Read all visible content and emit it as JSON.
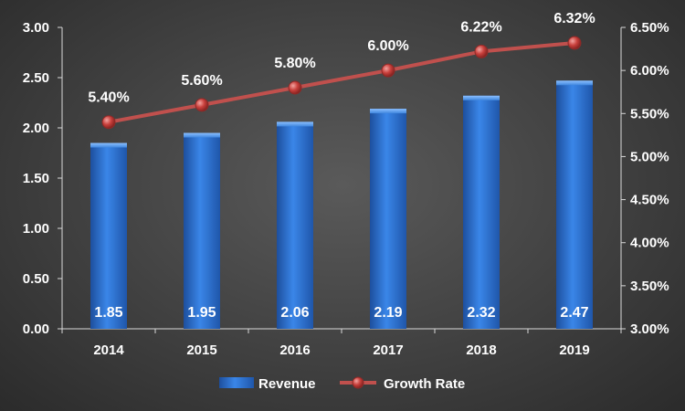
{
  "chart_data": {
    "type": "bar",
    "categories": [
      "2014",
      "2015",
      "2016",
      "2017",
      "2018",
      "2019"
    ],
    "series": [
      {
        "name": "Revenue",
        "type": "bar",
        "axis": "left",
        "values": [
          1.85,
          1.95,
          2.06,
          2.19,
          2.32,
          2.47
        ],
        "labels": [
          "1.85",
          "1.95",
          "2.06",
          "2.19",
          "2.32",
          "2.47"
        ],
        "color": "#2f74d0"
      },
      {
        "name": "Growth Rate",
        "type": "line",
        "axis": "right",
        "values": [
          5.4,
          5.6,
          5.8,
          6.0,
          6.22,
          6.32
        ],
        "labels": [
          "5.40%",
          "5.60%",
          "5.80%",
          "6.00%",
          "6.22%",
          "6.32%"
        ],
        "color": "#c0504d"
      }
    ],
    "y_left": {
      "ylim": [
        0,
        3
      ],
      "ticks": [
        0,
        0.5,
        1,
        1.5,
        2,
        2.5,
        3
      ],
      "tick_labels": [
        "0.00",
        "0.50",
        "1.00",
        "1.50",
        "2.00",
        "2.50",
        "3.00"
      ]
    },
    "y_right": {
      "ylim": [
        3.0,
        6.5
      ],
      "ticks": [
        3.0,
        3.5,
        4.0,
        4.5,
        5.0,
        5.5,
        6.0,
        6.5
      ],
      "tick_labels": [
        "3.00%",
        "3.50%",
        "4.00%",
        "4.50%",
        "5.00%",
        "5.50%",
        "6.00%",
        "6.50%"
      ]
    },
    "grid": false,
    "legend_position": "bottom"
  }
}
